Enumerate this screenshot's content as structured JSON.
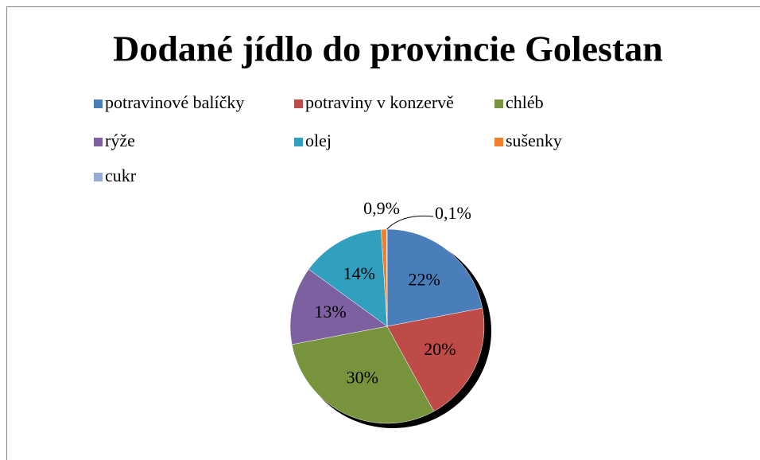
{
  "chart_data": {
    "type": "pie",
    "title": "Dodané jídlo do provincie Golestan",
    "categories": [
      "potravinové balíčky",
      "potraviny v konzervě",
      "chléb",
      "rýže",
      "olej",
      "sušenky",
      "cukr"
    ],
    "values": [
      22,
      20,
      30,
      13,
      14,
      0.9,
      0.1
    ],
    "value_labels": [
      "22%",
      "20%",
      "30%",
      "13%",
      "14%",
      "0,9%",
      "0,1%"
    ],
    "colors": [
      "#4a7ebb",
      "#be4b48",
      "#77933c",
      "#7d60a0",
      "#31a0be",
      "#f0802c",
      "#95abd6"
    ],
    "legend": "top"
  }
}
